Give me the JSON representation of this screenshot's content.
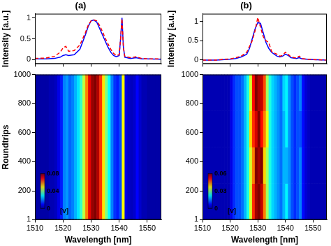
{
  "chart_data": [
    {
      "type": "line",
      "title": "(a)",
      "ylabel": "Intensity [a.u.]",
      "x": [
        1510,
        1514,
        1517,
        1519,
        1520,
        1521,
        1522,
        1524,
        1526,
        1528,
        1529,
        1530,
        1531,
        1532,
        1533,
        1534,
        1535,
        1536,
        1537,
        1538,
        1539,
        1540,
        1540.5,
        1541,
        1541.5,
        1542,
        1544,
        1546,
        1548,
        1550,
        1555
      ],
      "series": [
        {
          "color": "#ff0000",
          "line_style": "dashed",
          "values": [
            0.03,
            0.04,
            0.08,
            0.18,
            0.28,
            0.32,
            0.2,
            0.22,
            0.35,
            0.65,
            0.83,
            0.93,
            0.95,
            0.93,
            0.82,
            0.68,
            0.52,
            0.38,
            0.25,
            0.15,
            0.1,
            0.12,
            0.5,
            0.98,
            0.3,
            0.08,
            0.05,
            0.07,
            0.03,
            0.02,
            0.02
          ]
        },
        {
          "color": "#0000ff",
          "line_style": "solid",
          "values": [
            0.02,
            0.02,
            0.03,
            0.06,
            0.1,
            0.12,
            0.1,
            0.12,
            0.25,
            0.6,
            0.8,
            0.93,
            0.95,
            0.9,
            0.75,
            0.6,
            0.45,
            0.3,
            0.18,
            0.1,
            0.07,
            0.1,
            0.5,
            1.0,
            0.3,
            0.06,
            0.03,
            0.05,
            0.02,
            0.02,
            0.01
          ]
        }
      ],
      "xlim": [
        1510,
        1555
      ],
      "xticks": [
        1510,
        1520,
        1530,
        1540,
        1550
      ],
      "ylim": [
        -0.1,
        1.1
      ],
      "yticks": [
        0,
        0.5,
        1
      ],
      "grid": false,
      "tick_labels": "y"
    },
    {
      "type": "heatmap",
      "xlabel": "Wavelength [nm]",
      "ylabel": "Roundtrips",
      "x_edges": [
        1510,
        1511,
        1512,
        1513,
        1514,
        1515,
        1516,
        1517,
        1518,
        1519,
        1520,
        1521,
        1522,
        1523,
        1524,
        1525,
        1526,
        1527,
        1528,
        1529,
        1530,
        1531,
        1532,
        1533,
        1534,
        1535,
        1536,
        1537,
        1538,
        1539,
        1540,
        1541,
        1542,
        1543,
        1544,
        1545,
        1546,
        1547,
        1548,
        1549,
        1550,
        1551,
        1552,
        1553,
        1554,
        1555
      ],
      "y_edges": [
        1,
        1000
      ],
      "cells": [
        [
          0.003,
          0.003,
          0.003,
          0.003,
          0.003,
          0.004,
          0.004,
          0.005,
          0.008,
          0.012,
          0.02,
          0.022,
          0.018,
          0.02,
          0.024,
          0.028,
          0.034,
          0.045,
          0.06,
          0.072,
          0.078,
          0.08,
          0.076,
          0.066,
          0.052,
          0.04,
          0.03,
          0.02,
          0.014,
          0.012,
          0.016,
          0.05,
          0.008,
          0.006,
          0.005,
          0.006,
          0.01,
          0.006,
          0.004,
          0.004,
          0.003,
          0.003,
          0.003,
          0.003,
          0.003
        ]
      ],
      "colorbar_range": [
        0,
        0.08
      ],
      "colorbar_ticks": [
        0,
        0.04,
        0.08
      ],
      "colorbar_label": "[V]",
      "xlim": [
        1510,
        1555
      ],
      "xticks": [
        1510,
        1520,
        1530,
        1540,
        1550
      ],
      "ylim": [
        1,
        1000
      ],
      "yticks": [
        1,
        200,
        400,
        600,
        800,
        1000
      ],
      "grid": false
    },
    {
      "type": "line",
      "title": "(b)",
      "ylabel": "Intensity [a.u.]",
      "x": [
        1510,
        1515,
        1520,
        1522,
        1524,
        1526,
        1527,
        1528,
        1529,
        1530,
        1531,
        1532,
        1533,
        1534,
        1535,
        1536,
        1537,
        1538,
        1539,
        1540,
        1541,
        1542,
        1544,
        1545,
        1546,
        1548,
        1550,
        1555
      ],
      "series": [
        {
          "color": "#ff0000",
          "line_style": "dashed",
          "values": [
            0.0,
            0.0,
            0.03,
            0.06,
            0.1,
            0.2,
            0.35,
            0.5,
            0.75,
            1.1,
            0.85,
            0.6,
            0.5,
            0.45,
            0.22,
            0.18,
            0.15,
            0.1,
            0.12,
            0.2,
            0.15,
            0.08,
            0.05,
            0.1,
            0.04,
            0.02,
            0.01,
            0.0
          ]
        },
        {
          "color": "#0000ff",
          "line_style": "solid",
          "values": [
            0.0,
            0.0,
            0.02,
            0.04,
            0.08,
            0.15,
            0.3,
            0.55,
            0.8,
            0.97,
            0.95,
            0.7,
            0.45,
            0.3,
            0.2,
            0.15,
            0.1,
            0.08,
            0.1,
            0.15,
            0.12,
            0.06,
            0.04,
            0.06,
            0.03,
            0.02,
            0.01,
            0.0
          ]
        }
      ],
      "xlim": [
        1510,
        1555
      ],
      "xticks": [
        1510,
        1520,
        1530,
        1540,
        1550
      ],
      "ylim": [
        -0.1,
        1.2
      ],
      "yticks": [
        0,
        0.5,
        1
      ],
      "grid": false,
      "tick_labels": "y"
    },
    {
      "type": "heatmap",
      "xlabel": "Wavelength [nm]",
      "x_edges": [
        1510,
        1511,
        1512,
        1513,
        1514,
        1515,
        1516,
        1517,
        1518,
        1519,
        1520,
        1521,
        1522,
        1523,
        1524,
        1525,
        1526,
        1527,
        1528,
        1529,
        1530,
        1531,
        1532,
        1533,
        1534,
        1535,
        1536,
        1537,
        1538,
        1539,
        1540,
        1541,
        1542,
        1543,
        1544,
        1545,
        1546,
        1547,
        1548,
        1549,
        1550,
        1551,
        1552,
        1553,
        1554,
        1555
      ],
      "y_edges": [
        1,
        250,
        500,
        750,
        1000
      ],
      "cells": [
        [
          0.003,
          0.003,
          0.003,
          0.003,
          0.003,
          0.003,
          0.003,
          0.003,
          0.003,
          0.003,
          0.006,
          0.01,
          0.012,
          0.012,
          0.014,
          0.018,
          0.024,
          0.035,
          0.05,
          0.058,
          0.06,
          0.056,
          0.045,
          0.032,
          0.024,
          0.02,
          0.018,
          0.016,
          0.014,
          0.018,
          0.022,
          0.016,
          0.012,
          0.01,
          0.012,
          0.015,
          0.008,
          0.005,
          0.004,
          0.003,
          0.003,
          0.003,
          0.003,
          0.003,
          0.003
        ],
        [
          0.003,
          0.003,
          0.003,
          0.003,
          0.003,
          0.003,
          0.003,
          0.003,
          0.003,
          0.003,
          0.006,
          0.01,
          0.012,
          0.012,
          0.014,
          0.018,
          0.024,
          0.035,
          0.045,
          0.06,
          0.058,
          0.06,
          0.04,
          0.032,
          0.024,
          0.02,
          0.018,
          0.016,
          0.014,
          0.018,
          0.018,
          0.016,
          0.012,
          0.01,
          0.012,
          0.015,
          0.008,
          0.005,
          0.004,
          0.003,
          0.003,
          0.003,
          0.003,
          0.003,
          0.003
        ],
        [
          0.003,
          0.003,
          0.003,
          0.003,
          0.003,
          0.003,
          0.003,
          0.003,
          0.003,
          0.003,
          0.006,
          0.01,
          0.012,
          0.012,
          0.014,
          0.018,
          0.024,
          0.04,
          0.05,
          0.055,
          0.06,
          0.052,
          0.045,
          0.036,
          0.024,
          0.02,
          0.018,
          0.016,
          0.014,
          0.018,
          0.022,
          0.016,
          0.012,
          0.01,
          0.012,
          0.012,
          0.008,
          0.005,
          0.004,
          0.003,
          0.003,
          0.003,
          0.003,
          0.003,
          0.003
        ],
        [
          0.003,
          0.003,
          0.003,
          0.003,
          0.003,
          0.003,
          0.003,
          0.003,
          0.003,
          0.003,
          0.006,
          0.01,
          0.012,
          0.012,
          0.014,
          0.018,
          0.024,
          0.035,
          0.052,
          0.06,
          0.057,
          0.056,
          0.048,
          0.032,
          0.024,
          0.02,
          0.018,
          0.016,
          0.014,
          0.02,
          0.022,
          0.016,
          0.012,
          0.01,
          0.012,
          0.015,
          0.008,
          0.005,
          0.004,
          0.003,
          0.003,
          0.003,
          0.003,
          0.003,
          0.003
        ]
      ],
      "colorbar_range": [
        0,
        0.06
      ],
      "colorbar_ticks": [
        0,
        0.03,
        0.06
      ],
      "colorbar_label": "[V]",
      "xlim": [
        1510,
        1555
      ],
      "xticks": [
        1510,
        1520,
        1530,
        1540,
        1550
      ],
      "ylim": [
        1,
        1000
      ],
      "yticks": [
        1,
        200,
        400,
        600,
        800,
        1000
      ],
      "grid": false
    }
  ]
}
